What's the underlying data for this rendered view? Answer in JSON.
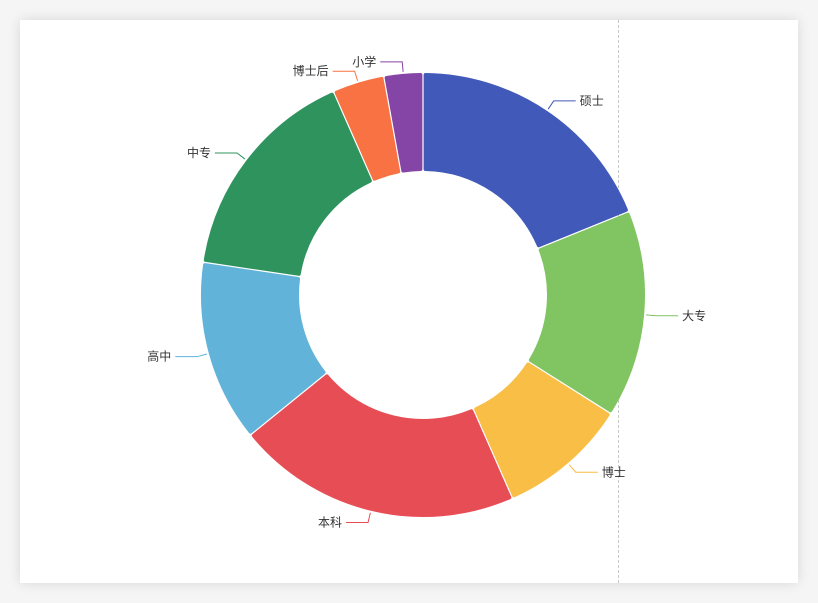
{
  "chart_data": {
    "type": "pie",
    "variant": "donut",
    "title": "",
    "labels": [
      "硕士",
      "大专",
      "博士",
      "本科",
      "高中",
      "中专",
      "博士后",
      "小学"
    ],
    "values": [
      20,
      16,
      10,
      22,
      14,
      17,
      4,
      3
    ],
    "colors": [
      "#4159b9",
      "#81c462",
      "#f8be45",
      "#e74d55",
      "#62b3d9",
      "#2f935e",
      "#f87243",
      "#8545a6"
    ],
    "legend": "none",
    "label_position": "outside"
  }
}
